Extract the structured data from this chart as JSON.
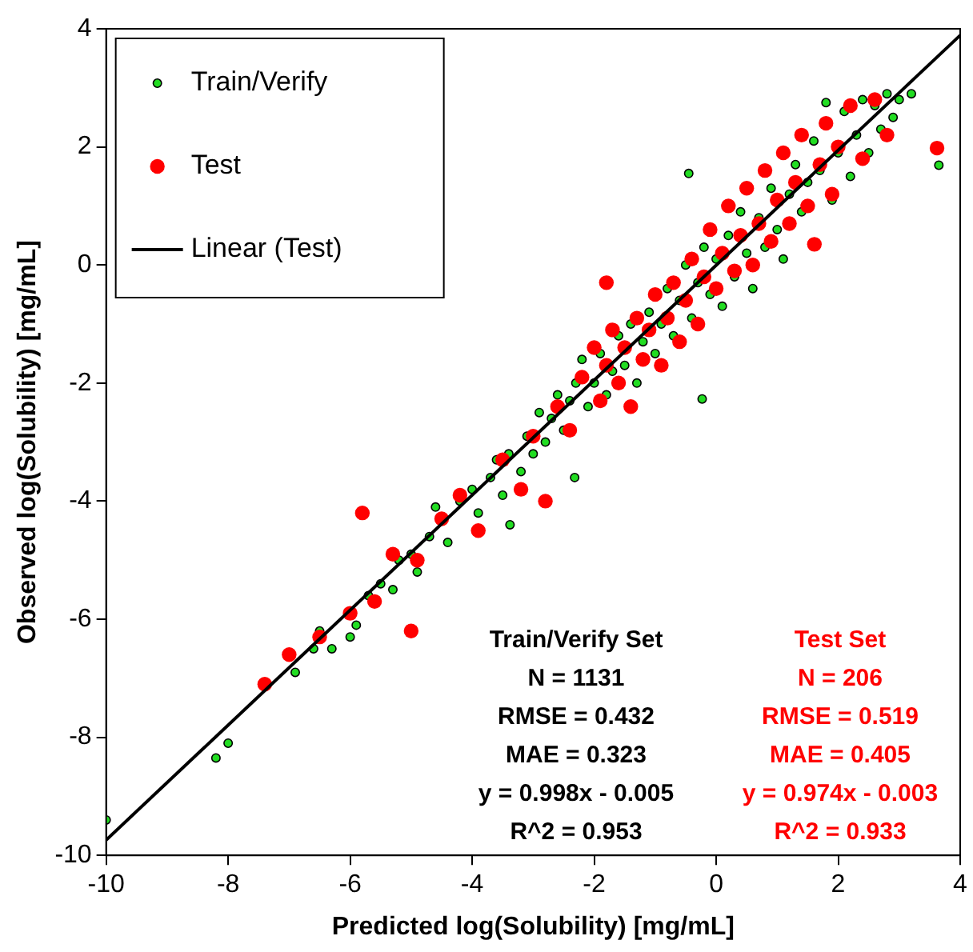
{
  "chart_data": {
    "type": "scatter",
    "xlabel": "Predicted log(Solubility) [mg/mL]",
    "ylabel": "Observed log(Solubility) [mg/mL]",
    "xlim": [
      -10,
      4
    ],
    "xticks": [
      -10,
      -8,
      -6,
      -4,
      -2,
      0,
      2,
      4
    ],
    "ylim": [
      -10,
      4
    ],
    "yticks": [
      -10,
      -8,
      -6,
      -4,
      -2,
      0,
      2,
      4
    ],
    "grid": false,
    "legend": "top left",
    "series": [
      {
        "name": "Train/Verify",
        "color": "#22dd22",
        "marker": "circle",
        "x": [
          -10,
          -8.2,
          -8,
          -6.9,
          -6.6,
          -6.5,
          -6.3,
          -6,
          -5.9,
          -5.7,
          -5.5,
          -5.3,
          -5.2,
          -5,
          -4.9,
          -4.7,
          -4.6,
          -4.4,
          -4.2,
          -4,
          -3.9,
          -3.7,
          -3.6,
          -3.5,
          -3.4,
          -3.38,
          -3.2,
          -3.1,
          -3,
          -2.9,
          -2.8,
          -2.7,
          -2.6,
          -2.5,
          -2.4,
          -2.32,
          -2.3,
          -2.2,
          -2.1,
          -2,
          -1.9,
          -1.8,
          -1.7,
          -1.6,
          -1.5,
          -1.4,
          -1.3,
          -1.2,
          -1.1,
          -1,
          -0.9,
          -0.8,
          -0.7,
          -0.6,
          -0.5,
          -0.45,
          -0.4,
          -0.3,
          -0.23,
          -0.2,
          -0.1,
          0,
          0.1,
          0.2,
          0.3,
          0.4,
          0.5,
          0.6,
          0.7,
          0.8,
          0.9,
          1,
          1.1,
          1.2,
          1.3,
          1.4,
          1.5,
          1.6,
          1.7,
          1.8,
          1.9,
          2,
          2.1,
          2.2,
          2.3,
          2.4,
          2.5,
          2.6,
          2.7,
          2.8,
          2.9,
          3,
          3.2,
          3.65
        ],
        "values": [
          -9.4,
          -8.35,
          -8.1,
          -6.9,
          -6.5,
          -6.2,
          -6.5,
          -6.3,
          -6.1,
          -5.6,
          -5.4,
          -5.5,
          -5,
          -4.9,
          -5.2,
          -4.6,
          -4.1,
          -4.7,
          -4,
          -3.8,
          -4.2,
          -3.6,
          -3.3,
          -3.9,
          -3.2,
          -4.4,
          -3.5,
          -2.9,
          -3.2,
          -2.5,
          -3,
          -2.6,
          -2.2,
          -2.8,
          -2.3,
          -3.6,
          -2,
          -1.6,
          -2.4,
          -2,
          -1.5,
          -2.2,
          -1.8,
          -1.2,
          -1.7,
          -1,
          -2,
          -1.3,
          -0.8,
          -1.5,
          -1,
          -0.4,
          -1.2,
          -0.6,
          0,
          1.55,
          -0.9,
          -0.3,
          -2.27,
          0.3,
          -0.5,
          0.1,
          -0.7,
          0.5,
          -0.2,
          0.9,
          0.2,
          -0.4,
          0.8,
          0.3,
          1.3,
          0.6,
          0.1,
          1.2,
          1.7,
          0.9,
          1.4,
          2.1,
          1.6,
          2.75,
          1.1,
          1.9,
          2.6,
          1.5,
          2.2,
          2.8,
          1.9,
          2.7,
          2.3,
          2.9,
          2.5,
          2.8,
          2.9,
          1.69
        ]
      },
      {
        "name": "Test",
        "color": "#ff0000",
        "marker": "circle",
        "x": [
          -7.4,
          -7,
          -6.5,
          -6,
          -5.8,
          -5.6,
          -5.3,
          -5,
          -4.9,
          -4.5,
          -4.2,
          -3.9,
          -3.5,
          -3.2,
          -3,
          -2.8,
          -2.6,
          -2.4,
          -2.2,
          -2,
          -1.9,
          -1.8,
          -1.8,
          -1.7,
          -1.6,
          -1.5,
          -1.4,
          -1.3,
          -1.2,
          -1.1,
          -1,
          -0.9,
          -0.8,
          -0.7,
          -0.6,
          -0.5,
          -0.4,
          -0.3,
          -0.2,
          -0.1,
          0,
          0.1,
          0.2,
          0.3,
          0.4,
          0.5,
          0.6,
          0.7,
          0.8,
          0.9,
          1,
          1.1,
          1.2,
          1.3,
          1.4,
          1.5,
          1.61,
          1.7,
          1.8,
          1.9,
          2,
          2.2,
          2.4,
          2.6,
          2.8,
          3.62
        ],
        "values": [
          -7.1,
          -6.6,
          -6.3,
          -5.9,
          -4.2,
          -5.7,
          -4.9,
          -6.2,
          -5,
          -4.3,
          -3.9,
          -4.5,
          -3.3,
          -3.8,
          -2.9,
          -4,
          -2.4,
          -2.8,
          -1.9,
          -1.4,
          -2.3,
          -1.7,
          -0.3,
          -1.1,
          -2,
          -1.4,
          -2.4,
          -0.9,
          -1.6,
          -1.1,
          -0.5,
          -1.7,
          -0.9,
          -0.3,
          -1.3,
          -0.6,
          0.1,
          -1,
          -0.2,
          0.6,
          -0.4,
          0.2,
          1,
          -0.1,
          0.5,
          1.3,
          0,
          0.7,
          1.6,
          0.4,
          1.1,
          1.9,
          0.7,
          1.4,
          2.2,
          1,
          0.35,
          1.7,
          2.4,
          1.2,
          2,
          2.7,
          1.8,
          2.8,
          2.2,
          1.98
        ]
      },
      {
        "name": "Linear (Test)",
        "type": "line",
        "color": "#000000",
        "marker": "none",
        "x": [
          -10,
          4
        ],
        "values": [
          -9.74,
          3.89
        ]
      }
    ],
    "annotations": [
      "Train/Verify Set",
      "N = 1131",
      "RMSE = 0.432",
      "MAE = 0.323",
      "y = 0.998x - 0.005",
      "R^2 = 0.953",
      "Test Set",
      "N = 206",
      "RMSE = 0.519",
      "MAE = 0.405",
      "y = 0.974x - 0.003",
      "R^2 = 0.933"
    ]
  }
}
